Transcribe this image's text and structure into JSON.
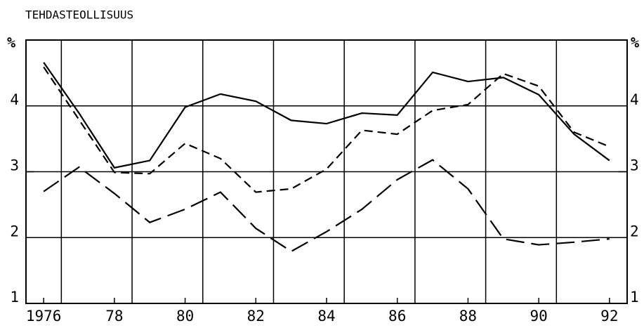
{
  "chart_data": {
    "type": "line",
    "title": "TEHDASTEOLLISUUS",
    "y_label": "%",
    "x": [
      1976,
      1977,
      1978,
      1979,
      1980,
      1981,
      1982,
      1983,
      1984,
      1985,
      1986,
      1987,
      1988,
      1989,
      1990,
      1991,
      1992
    ],
    "series": [
      {
        "color": "#000000",
        "style": "solid",
        "values": [
          4.66,
          3.89,
          3.06,
          3.17,
          3.98,
          4.18,
          4.07,
          3.78,
          3.73,
          3.89,
          3.86,
          4.51,
          4.37,
          4.43,
          4.17,
          3.57,
          3.17
        ]
      },
      {
        "color": "#000000",
        "style": "dashed",
        "values": [
          4.59,
          3.79,
          2.99,
          2.97,
          3.43,
          3.2,
          2.69,
          2.74,
          3.04,
          3.63,
          3.57,
          3.93,
          4.02,
          4.49,
          4.3,
          3.6,
          3.38
        ]
      },
      {
        "color": "#000000",
        "style": "long-dashed",
        "values": [
          2.7,
          3.07,
          2.67,
          2.23,
          2.43,
          2.69,
          2.14,
          1.79,
          2.09,
          2.43,
          2.88,
          3.18,
          2.74,
          1.98,
          1.89,
          1.93,
          1.98
        ]
      }
    ],
    "xlim": [
      1975.5,
      1992.5
    ],
    "xticks": [
      1976,
      {
        "value": 1978,
        "label": "78"
      },
      {
        "value": 1980,
        "label": "80"
      },
      {
        "value": 1982,
        "label": "82"
      },
      {
        "value": 1984,
        "label": "84"
      },
      {
        "value": 1986,
        "label": "86"
      },
      {
        "value": 1988,
        "label": "88"
      },
      {
        "value": 1990,
        "label": "90"
      },
      {
        "value": 1992,
        "label": "92"
      }
    ],
    "xgrid": [
      1976.5,
      1978.5,
      1980.5,
      1982.5,
      1984.5,
      1986.5,
      1988.5,
      1990.5
    ],
    "ylim": [
      1,
      5
    ],
    "yticks": [
      1,
      2,
      3,
      4
    ],
    "grid": true
  }
}
